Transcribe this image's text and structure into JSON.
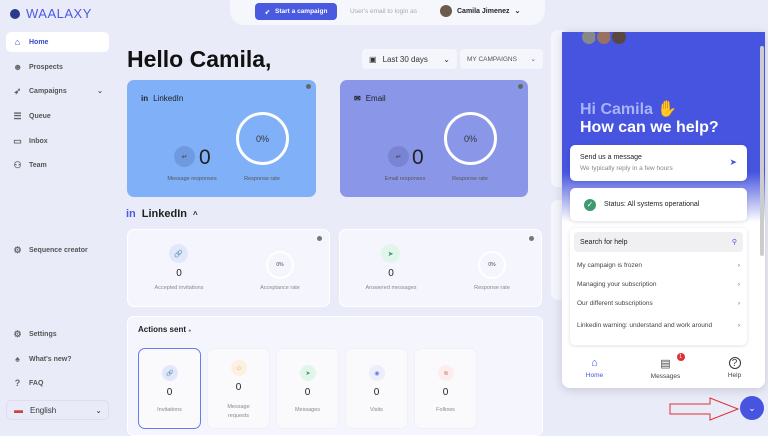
{
  "brand": "WAALAXY",
  "sidebar": {
    "items": [
      {
        "label": "Home",
        "icon": "home-icon"
      },
      {
        "label": "Prospects",
        "icon": "users-icon"
      },
      {
        "label": "Campaigns",
        "icon": "rocket-icon"
      },
      {
        "label": "Queue",
        "icon": "queue-icon"
      },
      {
        "label": "Inbox",
        "icon": "chat-icon"
      },
      {
        "label": "Team",
        "icon": "team-icon"
      },
      {
        "label": "Sequence creator",
        "icon": "gear-icon"
      }
    ],
    "bottom": [
      {
        "label": "Settings",
        "icon": "gear-icon"
      },
      {
        "label": "What's new?",
        "icon": "bell-icon"
      },
      {
        "label": "FAQ",
        "icon": "question-icon"
      }
    ],
    "language": "English"
  },
  "topbar": {
    "start_campaign": "Start a campaign",
    "email_placeholder": "User's email to login as",
    "user_name": "Camila Jimenez"
  },
  "main": {
    "greeting": "Hello Camila,",
    "period": "Last 30 days",
    "campaign_filter": "MY CAMPAIGNS",
    "linkedin_card": {
      "title": "LinkedIn",
      "value": "0",
      "value_label": "Message responses",
      "rate": "0%",
      "rate_label": "Response rate",
      "color": "#7fb0f8"
    },
    "email_card": {
      "title": "Email",
      "value": "0",
      "value_label": "Email responses",
      "rate": "0%",
      "rate_label": "Response rate",
      "color": "#8a97e8"
    },
    "linkedin_section": {
      "title": "LinkedIn",
      "invites": {
        "value": "0",
        "label": "Accepted invitations",
        "rate": "0%",
        "rate_label": "Acceptance rate"
      },
      "messages": {
        "value": "0",
        "label": "Answered messages",
        "rate": "0%",
        "rate_label": "Response rate"
      }
    },
    "actions": {
      "title": "Actions sent",
      "items": [
        {
          "value": "0",
          "label": "Invitations"
        },
        {
          "value": "0",
          "label": "Message requests"
        },
        {
          "value": "0",
          "label": "Messages"
        },
        {
          "value": "0",
          "label": "Visits"
        },
        {
          "value": "0",
          "label": "Follows"
        }
      ]
    }
  },
  "widget": {
    "hi": "Hi Camila",
    "help": "How can we help?",
    "send_title": "Send us a message",
    "send_sub": "We typically reply in a few hours",
    "status": "Status: All systems operational",
    "search": "Search for help",
    "articles": [
      "My campaign is frozen",
      "Managing your subscription",
      "Our different subscriptions",
      "Linkedin warning: understand and work around"
    ],
    "tabs": [
      {
        "label": "Home"
      },
      {
        "label": "Messages",
        "badge": "1"
      },
      {
        "label": "Help"
      }
    ],
    "accent": "#4654e0"
  }
}
